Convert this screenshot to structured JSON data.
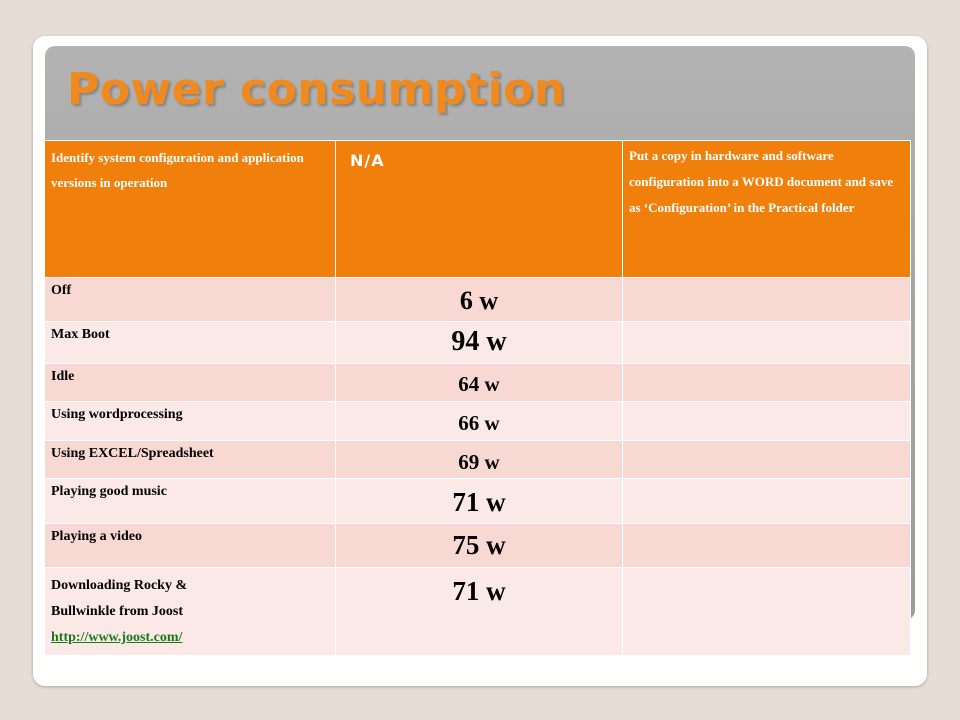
{
  "slide": {
    "title": "Power consumption"
  },
  "table": {
    "header": {
      "col1": "Identify system configuration and application versions in operation",
      "col2": "N/A",
      "col3": "Put a copy in hardware and software configuration into a WORD document and save as ‘Configuration’ in the Practical folder"
    },
    "rows": [
      {
        "activity": "Off",
        "power": "6 w"
      },
      {
        "activity": "Max Boot",
        "power": "94 w"
      },
      {
        "activity": "Idle",
        "power": "64 w"
      },
      {
        "activity": "Using wordprocessing",
        "power": "66 w"
      },
      {
        "activity": "Using EXCEL/Spreadsheet",
        "power": "69 w"
      },
      {
        "activity": "Playing good music",
        "power": "71 w"
      },
      {
        "activity": "Playing a video",
        "power": "75 w"
      },
      {
        "activity_line1": "Downloading Rocky &",
        "activity_line2": "Bullwinkle from Joost",
        "link": "http://www.joost.com/",
        "power": "71 w"
      }
    ]
  },
  "colors": {
    "title": "#f08a1e",
    "header_bg": "#f0800b",
    "row_dark": "#f8d8d3",
    "row_light": "#fbe9e7",
    "panel": "#a6a6a6"
  }
}
